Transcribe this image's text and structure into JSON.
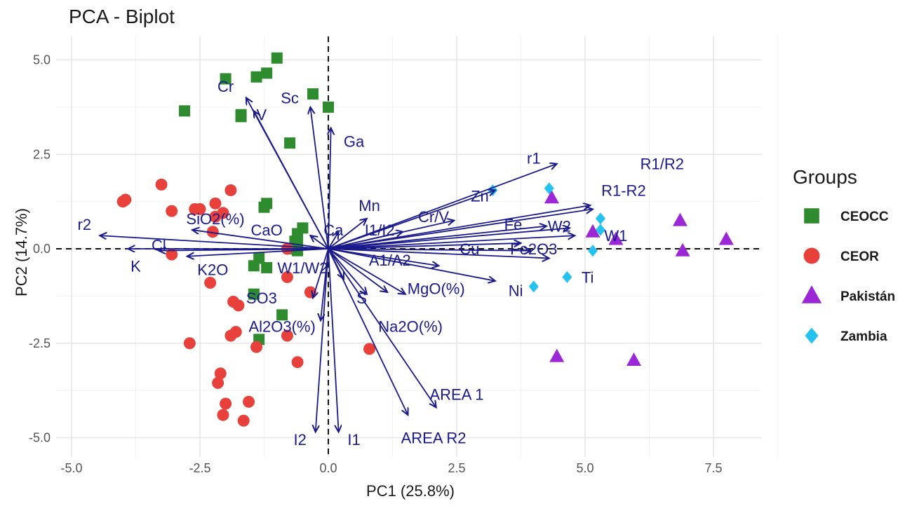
{
  "chart_data": {
    "type": "scatter",
    "title": "PCA - Biplot",
    "xlabel": "PC1 (25.8%)",
    "ylabel": "PC2 (14.7%)",
    "xlim": [
      -5.3,
      8.4
    ],
    "ylim": [
      -5.3,
      5.6
    ],
    "xticks": [
      -5.0,
      -2.5,
      0.0,
      2.5,
      5.0,
      7.5
    ],
    "xtick_labels": [
      "-5.0",
      "-2.5",
      "0.0",
      "2.5",
      "5.0",
      "7.5"
    ],
    "yticks": [
      -5.0,
      -2.5,
      0.0,
      2.5,
      5.0
    ],
    "ytick_labels": [
      "-5.0",
      "-2.5",
      "0.0",
      "2.5",
      "5.0"
    ],
    "grid": true,
    "reference_lines": {
      "x": 0,
      "y": 0,
      "style": "dashed"
    },
    "legend": {
      "title": "Groups",
      "position": "right",
      "entries": [
        {
          "label": "CEOCC",
          "color": "#2e8b2e",
          "shape": "square"
        },
        {
          "label": "CEOR",
          "color": "#e8413c",
          "shape": "circle"
        },
        {
          "label": "Pakistán",
          "color": "#9b27d6",
          "shape": "triangle"
        },
        {
          "label": "Zambia",
          "color": "#23c2f0",
          "shape": "diamond"
        }
      ]
    },
    "series": [
      {
        "name": "CEOCC",
        "points": [
          [
            -1.0,
            5.05
          ],
          [
            -1.2,
            4.65
          ],
          [
            -1.4,
            4.55
          ],
          [
            -2.0,
            4.5
          ],
          [
            -0.3,
            4.1
          ],
          [
            0.0,
            3.75
          ],
          [
            -2.8,
            3.65
          ],
          [
            -1.7,
            3.55
          ],
          [
            -1.7,
            3.5
          ],
          [
            -0.75,
            2.8
          ],
          [
            -1.2,
            1.2
          ],
          [
            -1.25,
            1.1
          ],
          [
            -0.5,
            0.55
          ],
          [
            -0.6,
            0.4
          ],
          [
            -0.65,
            0.2
          ],
          [
            -0.6,
            0.15
          ],
          [
            -0.7,
            0.0
          ],
          [
            -0.6,
            -0.05
          ],
          [
            -1.35,
            -0.25
          ],
          [
            -1.45,
            -0.45
          ],
          [
            -1.2,
            -0.5
          ],
          [
            -1.45,
            -1.2
          ],
          [
            -0.9,
            -1.75
          ],
          [
            -1.35,
            -2.4
          ]
        ]
      },
      {
        "name": "CEOR",
        "points": [
          [
            -3.25,
            1.7
          ],
          [
            -1.9,
            1.55
          ],
          [
            -3.95,
            1.3
          ],
          [
            -4.0,
            1.25
          ],
          [
            -2.2,
            1.2
          ],
          [
            -2.5,
            1.05
          ],
          [
            -2.6,
            1.05
          ],
          [
            -3.05,
            1.0
          ],
          [
            -2.05,
            0.95
          ],
          [
            -2.2,
            0.85
          ],
          [
            -2.25,
            0.45
          ],
          [
            -0.8,
            0.0
          ],
          [
            -3.05,
            -0.15
          ],
          [
            -0.8,
            -0.75
          ],
          [
            -2.3,
            -0.9
          ],
          [
            -0.35,
            -1.15
          ],
          [
            -1.85,
            -1.4
          ],
          [
            -1.75,
            -1.5
          ],
          [
            -1.8,
            -2.2
          ],
          [
            -1.9,
            -2.3
          ],
          [
            -0.8,
            -2.3
          ],
          [
            -1.4,
            -2.6
          ],
          [
            -2.7,
            -2.5
          ],
          [
            0.8,
            -2.65
          ],
          [
            -0.6,
            -3.0
          ],
          [
            -2.1,
            -3.3
          ],
          [
            -2.15,
            -3.55
          ],
          [
            -1.55,
            -4.05
          ],
          [
            -2.0,
            -4.1
          ],
          [
            -2.05,
            -4.4
          ],
          [
            -1.65,
            -4.55
          ]
        ]
      },
      {
        "name": "Pakistán",
        "points": [
          [
            4.35,
            1.35
          ],
          [
            7.75,
            0.25
          ],
          [
            6.85,
            0.75
          ],
          [
            6.9,
            -0.05
          ],
          [
            5.15,
            0.45
          ],
          [
            5.6,
            0.25
          ],
          [
            4.45,
            -2.85
          ],
          [
            5.95,
            -2.95
          ]
        ]
      },
      {
        "name": "Zambia",
        "points": [
          [
            3.2,
            1.55
          ],
          [
            4.3,
            1.6
          ],
          [
            5.3,
            0.8
          ],
          [
            5.3,
            0.5
          ],
          [
            5.15,
            -0.05
          ],
          [
            4.65,
            -0.75
          ],
          [
            4.0,
            -1.0
          ]
        ]
      }
    ],
    "loadings": [
      {
        "label": "Cr",
        "end": [
          -1.6,
          4.0
        ],
        "label_pos": [
          -2.0,
          4.3
        ]
      },
      {
        "label": "V",
        "end": [
          -1.45,
          3.65
        ],
        "label_pos": [
          -1.3,
          3.55
        ]
      },
      {
        "label": "Sc",
        "end": [
          -0.35,
          3.75
        ],
        "label_pos": [
          -0.75,
          4.0
        ]
      },
      {
        "label": "Ga",
        "end": [
          0.05,
          3.2
        ],
        "label_pos": [
          0.5,
          2.85
        ]
      },
      {
        "label": "r1",
        "end": [
          4.45,
          2.25
        ],
        "label_pos": [
          4.0,
          2.4
        ]
      },
      {
        "label": "R1/R2",
        "end": [
          5.1,
          1.15
        ],
        "label_pos": [
          6.5,
          2.25
        ]
      },
      {
        "label": "R1-R2",
        "end": [
          5.15,
          1.05
        ],
        "label_pos": [
          5.75,
          1.55
        ]
      },
      {
        "label": "Zn",
        "end": [
          3.25,
          1.55
        ],
        "label_pos": [
          2.95,
          1.4
        ]
      },
      {
        "label": "Mn",
        "end": [
          0.75,
          0.8
        ],
        "label_pos": [
          0.8,
          1.15
        ]
      },
      {
        "label": "Cr/V",
        "end": [
          2.45,
          0.75
        ],
        "label_pos": [
          2.05,
          0.85
        ]
      },
      {
        "label": "I1/I2",
        "end": [
          1.45,
          0.45
        ],
        "label_pos": [
          1.0,
          0.5
        ]
      },
      {
        "label": "Fe",
        "end": [
          4.25,
          0.6
        ],
        "label_pos": [
          3.6,
          0.65
        ]
      },
      {
        "label": "W2",
        "end": [
          4.7,
          0.55
        ],
        "label_pos": [
          4.5,
          0.6
        ]
      },
      {
        "label": "W1",
        "end": [
          4.8,
          0.35
        ],
        "label_pos": [
          5.6,
          0.35
        ]
      },
      {
        "label": "Cu",
        "end": [
          3.75,
          0.15
        ],
        "label_pos": [
          2.75,
          0.0
        ]
      },
      {
        "label": "Fe2O3",
        "end": [
          4.3,
          -0.25
        ],
        "label_pos": [
          4.0,
          0.0
        ]
      },
      {
        "label": "Ti",
        "end": [
          3.95,
          -0.05
        ],
        "label_pos": [
          5.05,
          -0.75
        ]
      },
      {
        "label": "A1/A2",
        "end": [
          2.15,
          -0.45
        ],
        "label_pos": [
          1.2,
          -0.3
        ]
      },
      {
        "label": "Ni",
        "end": [
          3.25,
          -0.85
        ],
        "label_pos": [
          3.65,
          -1.1
        ]
      },
      {
        "label": "MgO(%)",
        "end": [
          1.15,
          -1.15
        ],
        "label_pos": [
          2.1,
          -1.05
        ]
      },
      {
        "label": "S",
        "end": [
          0.75,
          -1.2
        ],
        "label_pos": [
          0.65,
          -1.3
        ]
      },
      {
        "label": "Na2O(%)",
        "end": [
          1.5,
          -1.2
        ],
        "label_pos": [
          1.6,
          -2.05
        ]
      },
      {
        "label": "AREA 1",
        "end": [
          2.1,
          -4.2
        ],
        "label_pos": [
          2.5,
          -3.85
        ]
      },
      {
        "label": "AREA R2",
        "end": [
          1.55,
          -4.4
        ],
        "label_pos": [
          2.05,
          -5.0
        ]
      },
      {
        "label": "I2",
        "end": [
          -0.25,
          -4.85
        ],
        "label_pos": [
          -0.55,
          -5.05
        ]
      },
      {
        "label": "I1",
        "end": [
          0.2,
          -4.85
        ],
        "label_pos": [
          0.5,
          -5.05
        ]
      },
      {
        "label": "Al2O3(%)",
        "end": [
          -0.15,
          -1.9
        ],
        "label_pos": [
          -0.9,
          -2.05
        ]
      },
      {
        "label": "SO3",
        "end": [
          -0.3,
          -1.3
        ],
        "label_pos": [
          -1.3,
          -1.3
        ]
      },
      {
        "label": "W1/W2",
        "end": [
          0.3,
          -0.8
        ],
        "label_pos": [
          -0.5,
          -0.5
        ]
      },
      {
        "label": "Ca",
        "end": [
          0.2,
          0.45
        ],
        "label_pos": [
          0.1,
          0.5
        ]
      },
      {
        "label": "CaO",
        "end": [
          -0.35,
          0.35
        ],
        "label_pos": [
          -1.2,
          0.5
        ]
      },
      {
        "label": "SiO2(%)",
        "end": [
          -2.65,
          0.5
        ],
        "label_pos": [
          -2.2,
          0.8
        ]
      },
      {
        "label": "r2",
        "end": [
          -4.45,
          0.35
        ],
        "label_pos": [
          -4.75,
          0.65
        ]
      },
      {
        "label": "Cl",
        "end": [
          -3.9,
          0.0
        ],
        "label_pos": [
          -3.3,
          0.1
        ]
      },
      {
        "label": "K",
        "end": [
          -3.3,
          -0.05
        ],
        "label_pos": [
          -3.75,
          -0.45
        ]
      },
      {
        "label": "K2O",
        "end": [
          -2.75,
          -0.2
        ],
        "label_pos": [
          -2.25,
          -0.55
        ]
      }
    ]
  }
}
